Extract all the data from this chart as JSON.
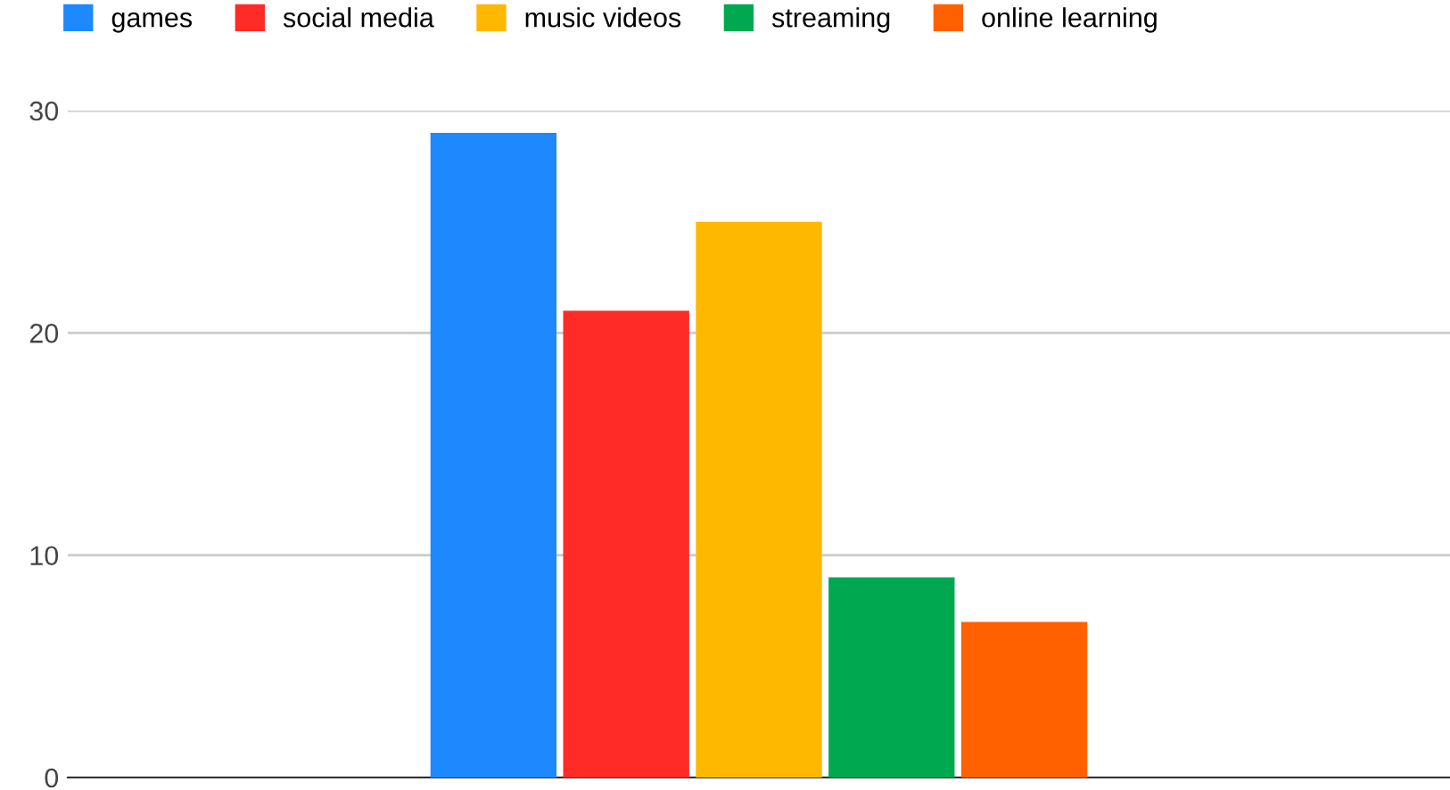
{
  "chart_data": {
    "type": "bar",
    "categories": [
      null
    ],
    "series": [
      {
        "name": "games",
        "color": "#1e88ff",
        "values": [
          29
        ]
      },
      {
        "name": "social media",
        "color": "#ff2b26",
        "values": [
          21
        ]
      },
      {
        "name": "music videos",
        "color": "#ffb800",
        "values": [
          25
        ]
      },
      {
        "name": "streaming",
        "color": "#00a94f",
        "values": [
          9
        ]
      },
      {
        "name": "online learning",
        "color": "#ff6100",
        "values": [
          7
        ]
      }
    ],
    "ylim": [
      0,
      30
    ],
    "yticks": [
      0,
      10,
      20,
      30
    ],
    "grid": "y",
    "legend": "top left"
  }
}
